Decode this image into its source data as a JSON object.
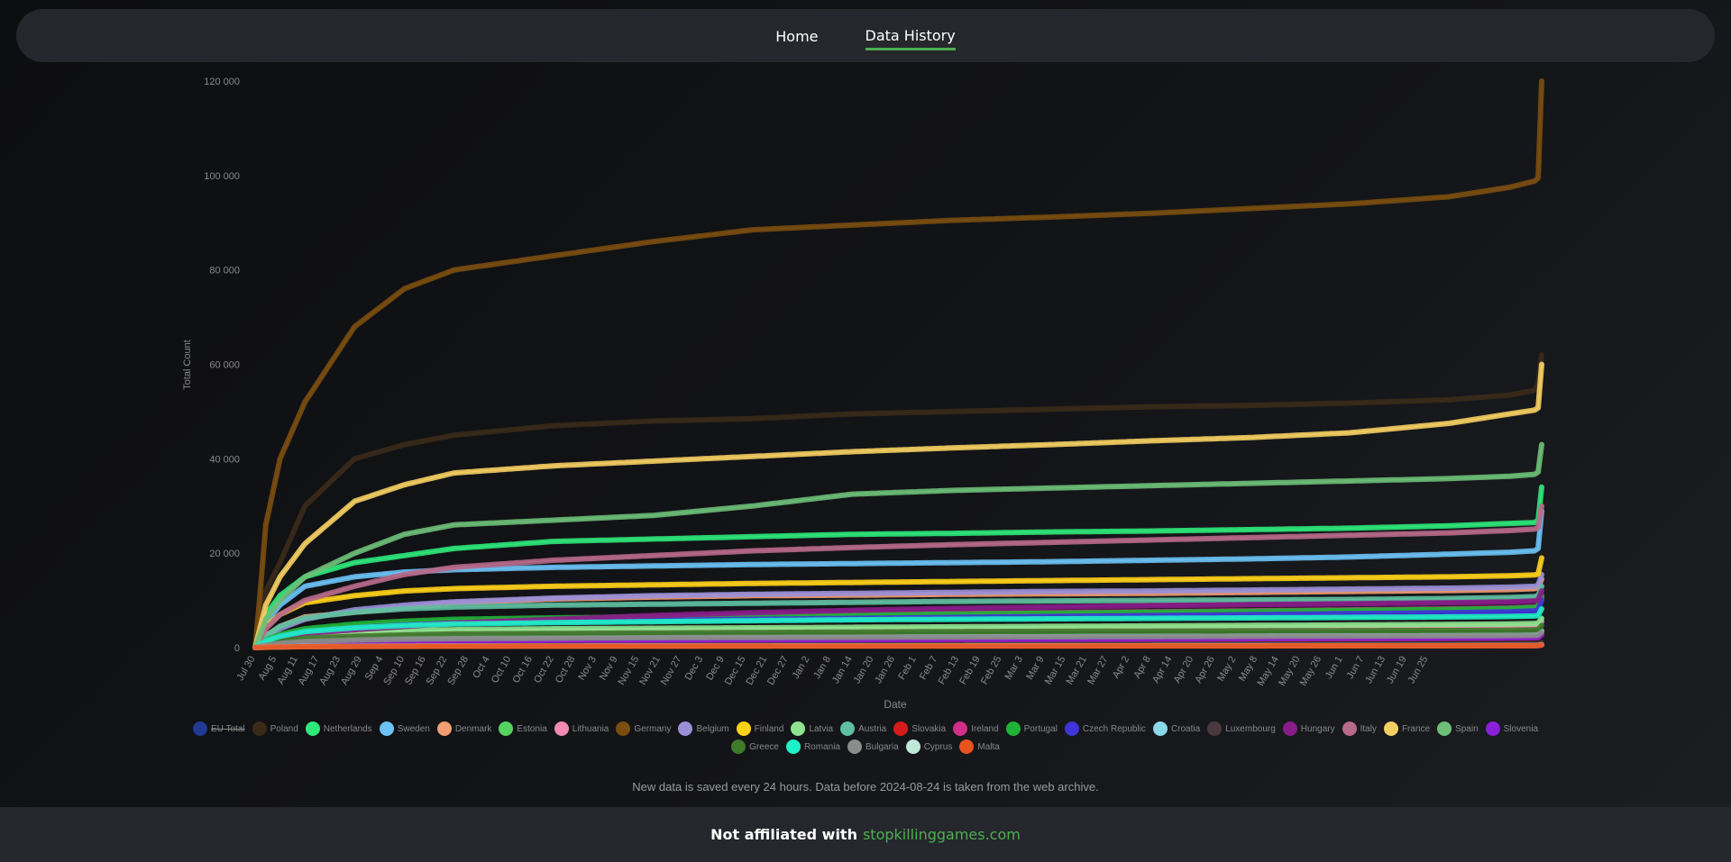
{
  "nav": {
    "home": "Home",
    "history": "Data History"
  },
  "note": "New data is saved every 24 hours. Data before 2024-08-24 is taken from the web archive.",
  "footer": {
    "prefix": "Not affiliated with",
    "link": "stopkillinggames.com"
  },
  "chart_data": {
    "type": "line",
    "xlabel": "Date",
    "ylabel": "Total Count",
    "ylim": [
      0,
      120000
    ],
    "yticks": [
      0,
      20000,
      40000,
      60000,
      80000,
      100000,
      120000
    ],
    "ytick_labels": [
      "0",
      "20 000",
      "40 000",
      "60 000",
      "80 000",
      "100 000",
      "120 000"
    ],
    "xtick_labels": [
      "Jul 30",
      "Aug 5",
      "Aug 11",
      "Aug 17",
      "Aug 23",
      "Aug 29",
      "Sep 4",
      "Sep 10",
      "Sep 16",
      "Sep 22",
      "Sep 28",
      "Oct 4",
      "Oct 10",
      "Oct 16",
      "Oct 22",
      "Oct 28",
      "Nov 3",
      "Nov 9",
      "Nov 15",
      "Nov 21",
      "Nov 27",
      "Dec 3",
      "Dec 9",
      "Dec 15",
      "Dec 21",
      "Dec 27",
      "Jan 2",
      "Jan 8",
      "Jan 14",
      "Jan 20",
      "Jan 26",
      "Feb 1",
      "Feb 7",
      "Feb 13",
      "Feb 19",
      "Feb 25",
      "Mar 3",
      "Mar 9",
      "Mar 15",
      "Mar 21",
      "Mar 27",
      "Apr 2",
      "Apr 8",
      "Apr 14",
      "Apr 20",
      "Apr 26",
      "May 2",
      "May 8",
      "May 14",
      "May 20",
      "May 26",
      "Jun 1",
      "Jun 7",
      "Jun 13",
      "Jun 19",
      "Jun 25"
    ],
    "x_index": [
      0,
      1,
      3,
      7,
      14,
      28,
      42,
      56,
      84,
      112,
      140,
      168,
      196,
      224,
      252,
      280,
      308,
      336,
      353,
      360,
      361,
      362
    ],
    "legend_position": "bottom",
    "grid": false,
    "series": [
      {
        "name": "EU Total",
        "color": "#1f3b94",
        "hidden": true,
        "values": []
      },
      {
        "name": "Poland",
        "color": "#3a2a1a",
        "values": [
          0,
          5000,
          12000,
          18000,
          30000,
          40000,
          43000,
          45000,
          47000,
          48000,
          48500,
          49500,
          50000,
          50500,
          51000,
          51300,
          51800,
          52500,
          53500,
          54500,
          56000,
          62000
        ]
      },
      {
        "name": "Netherlands",
        "color": "#2ee87a",
        "values": [
          0,
          2500,
          7000,
          11000,
          15000,
          18000,
          19500,
          21000,
          22500,
          23000,
          23500,
          24000,
          24200,
          24500,
          24700,
          25000,
          25300,
          25800,
          26300,
          26500,
          27000,
          34000
        ]
      },
      {
        "name": "Sweden",
        "color": "#6cc2f5",
        "values": [
          0,
          2000,
          5500,
          9000,
          13000,
          15000,
          16000,
          16500,
          17000,
          17300,
          17600,
          17800,
          18000,
          18200,
          18500,
          18800,
          19200,
          19800,
          20200,
          20500,
          21000,
          29000
        ]
      },
      {
        "name": "Denmark",
        "color": "#f29e73",
        "values": [
          0,
          1000,
          2500,
          4500,
          6500,
          7500,
          8500,
          9500,
          10300,
          10700,
          11000,
          11100,
          11300,
          11400,
          11500,
          11700,
          11900,
          12100,
          12300,
          12500,
          12700,
          14500
        ]
      },
      {
        "name": "Estonia",
        "color": "#55d35f",
        "values": [
          0,
          200,
          600,
          1000,
          1400,
          1700,
          1900,
          2000,
          2100,
          2150,
          2200,
          2250,
          2300,
          2350,
          2400,
          2450,
          2500,
          2550,
          2600,
          2650,
          2700,
          3500
        ]
      },
      {
        "name": "Lithuania",
        "color": "#f28ab3",
        "values": [
          0,
          300,
          900,
          1600,
          2200,
          2700,
          3000,
          3200,
          3400,
          3500,
          3600,
          3700,
          3800,
          3900,
          4000,
          4100,
          4200,
          4300,
          4400,
          4500,
          4600,
          5500
        ]
      },
      {
        "name": "Germany",
        "color": "#7a4e10",
        "values": [
          0,
          8000,
          26000,
          40000,
          52000,
          68000,
          76000,
          80000,
          83000,
          86000,
          88500,
          89500,
          90500,
          91200,
          92000,
          93000,
          94000,
          95500,
          97500,
          98800,
          99500,
          120000
        ]
      },
      {
        "name": "Belgium",
        "color": "#9b8fd8",
        "values": [
          0,
          800,
          2200,
          4000,
          6000,
          8000,
          9000,
          9700,
          10500,
          11000,
          11300,
          11500,
          11700,
          11900,
          12000,
          12200,
          12400,
          12600,
          12800,
          13000,
          13200,
          15500
        ]
      },
      {
        "name": "Finland",
        "color": "#ffd21a",
        "values": [
          0,
          1500,
          4500,
          7000,
          9500,
          11000,
          12000,
          12500,
          13000,
          13300,
          13600,
          13800,
          14000,
          14200,
          14400,
          14600,
          14800,
          15000,
          15200,
          15400,
          15600,
          19000
        ]
      },
      {
        "name": "Latvia",
        "color": "#8ee48e",
        "values": [
          0,
          400,
          1200,
          2000,
          2800,
          3300,
          3600,
          3800,
          4000,
          4100,
          4200,
          4300,
          4400,
          4500,
          4600,
          4700,
          4800,
          4900,
          5000,
          5100,
          5200,
          6200
        ]
      },
      {
        "name": "Austria",
        "color": "#5fbfa0",
        "values": [
          0,
          900,
          2500,
          4500,
          6300,
          7500,
          8200,
          8600,
          9000,
          9200,
          9400,
          9600,
          9800,
          9900,
          10000,
          10100,
          10200,
          10400,
          10600,
          10800,
          11000,
          13000
        ]
      },
      {
        "name": "Slovakia",
        "color": "#d61b1b",
        "values": [
          0,
          100,
          300,
          600,
          900,
          1100,
          1300,
          1400,
          1500,
          1550,
          1600,
          1650,
          1700,
          1750,
          1800,
          1850,
          1900,
          1950,
          2000,
          2050,
          2100,
          2800
        ]
      },
      {
        "name": "Ireland",
        "color": "#d12e8a",
        "values": [
          0,
          500,
          1400,
          2500,
          3700,
          4500,
          5200,
          5600,
          6000,
          6400,
          6700,
          7000,
          7200,
          7400,
          7600,
          7800,
          8000,
          8200,
          8400,
          8600,
          8800,
          10500
        ]
      },
      {
        "name": "Portugal",
        "color": "#1fb338",
        "values": [
          0,
          600,
          1600,
          2800,
          4000,
          5000,
          5600,
          6000,
          6300,
          6500,
          6700,
          6900,
          7100,
          7300,
          7500,
          7700,
          7900,
          8100,
          8300,
          8500,
          8700,
          11000
        ]
      },
      {
        "name": "Czech Republic",
        "color": "#3f34d8",
        "values": [
          0,
          500,
          1300,
          2300,
          3300,
          4200,
          4800,
          5200,
          5500,
          5800,
          6000,
          6200,
          6400,
          6600,
          6800,
          7000,
          7200,
          7400,
          7600,
          7800,
          8000,
          10000
        ]
      },
      {
        "name": "Croatia",
        "color": "#8ad9e8",
        "values": [
          0,
          200,
          600,
          1000,
          1400,
          1700,
          1900,
          2000,
          2100,
          2200,
          2300,
          2350,
          2400,
          2450,
          2500,
          2550,
          2600,
          2650,
          2700,
          2750,
          2800,
          3500
        ]
      },
      {
        "name": "Luxembourg",
        "color": "#4a3a40",
        "values": [
          0,
          50,
          150,
          250,
          350,
          420,
          470,
          500,
          520,
          540,
          560,
          580,
          600,
          620,
          640,
          660,
          680,
          700,
          720,
          740,
          760,
          1000
        ]
      },
      {
        "name": "Hungary",
        "color": "#8a1c8a",
        "values": [
          0,
          400,
          1100,
          2000,
          3000,
          3800,
          4500,
          5200,
          6000,
          6800,
          7400,
          7900,
          8300,
          8600,
          8900,
          9100,
          9300,
          9500,
          9700,
          9900,
          10100,
          12000
        ]
      },
      {
        "name": "Italy",
        "color": "#b86a8a",
        "values": [
          0,
          1500,
          4000,
          7000,
          10000,
          13000,
          15500,
          17000,
          18500,
          19500,
          20500,
          21200,
          21800,
          22300,
          22800,
          23300,
          23800,
          24300,
          24800,
          25100,
          25400,
          30000
        ]
      },
      {
        "name": "France",
        "color": "#f5cf62",
        "values": [
          0,
          3000,
          9000,
          15000,
          22000,
          31000,
          34500,
          37000,
          38500,
          39500,
          40500,
          41500,
          42300,
          43000,
          43800,
          44500,
          45500,
          47500,
          49500,
          50300,
          50800,
          60000
        ]
      },
      {
        "name": "Spain",
        "color": "#6dbf78",
        "values": [
          0,
          2000,
          6000,
          10000,
          15000,
          20000,
          24000,
          26000,
          27000,
          28000,
          30000,
          32500,
          33300,
          33800,
          34300,
          34800,
          35300,
          35800,
          36300,
          36700,
          37200,
          43000
        ]
      },
      {
        "name": "Slovenia",
        "color": "#8a1fd8",
        "values": [
          0,
          150,
          400,
          700,
          1000,
          1200,
          1350,
          1450,
          1550,
          1600,
          1650,
          1700,
          1750,
          1800,
          1850,
          1900,
          1950,
          2000,
          2050,
          2100,
          2150,
          2700
        ]
      },
      {
        "name": "Greece",
        "color": "#3d7a2a",
        "values": [
          0,
          300,
          800,
          1400,
          2000,
          2400,
          2700,
          2900,
          3000,
          3100,
          3200,
          3300,
          3400,
          3450,
          3500,
          3550,
          3600,
          3650,
          3700,
          3750,
          3800,
          4700
        ]
      },
      {
        "name": "Romania",
        "color": "#1ff0c8",
        "values": [
          0,
          500,
          1400,
          2400,
          3400,
          4200,
          4700,
          5000,
          5300,
          5500,
          5700,
          5900,
          6000,
          6100,
          6200,
          6300,
          6400,
          6500,
          6600,
          6700,
          6800,
          8200
        ]
      },
      {
        "name": "Bulgaria",
        "color": "#8a8d8a",
        "values": [
          0,
          200,
          500,
          900,
          1300,
          1600,
          1800,
          1900,
          2000,
          2100,
          2150,
          2200,
          2250,
          2300,
          2350,
          2400,
          2450,
          2500,
          2550,
          2600,
          2650,
          3300
        ]
      },
      {
        "name": "Cyprus",
        "color": "#bfe8d8",
        "values": [
          0,
          30,
          90,
          160,
          230,
          280,
          310,
          330,
          350,
          360,
          370,
          380,
          390,
          400,
          410,
          420,
          430,
          440,
          450,
          460,
          470,
          600
        ]
      },
      {
        "name": "Malta",
        "color": "#e8521f",
        "values": [
          0,
          30,
          80,
          140,
          200,
          240,
          270,
          290,
          300,
          310,
          320,
          330,
          340,
          350,
          360,
          370,
          380,
          390,
          400,
          410,
          420,
          550
        ]
      }
    ]
  }
}
